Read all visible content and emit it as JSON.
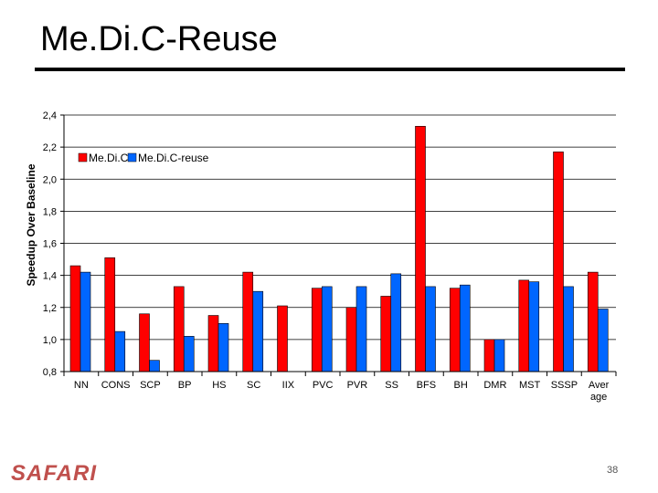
{
  "slide": {
    "title": "Me.Di.C-Reuse",
    "logo_text": "SAFARI",
    "page_number": "38"
  },
  "colors": {
    "series_1": "#ff0000",
    "series_2": "#0066ff",
    "text": "#000000",
    "grid": "#000000",
    "logo": "#c0504d"
  },
  "chart_data": {
    "type": "bar",
    "title": "",
    "xlabel": "",
    "ylabel": "Speedup Over Baseline",
    "ylim": [
      0.8,
      2.4
    ],
    "yticks": [
      "0,8",
      "1,0",
      "1,2",
      "1,4",
      "1,6",
      "1,8",
      "2,0",
      "2,2",
      "2,4"
    ],
    "grid": true,
    "legend_position": "top-left",
    "categories": [
      "NN",
      "CONS",
      "SCP",
      "BP",
      "HS",
      "SC",
      "IIX",
      "PVC",
      "PVR",
      "SS",
      "BFS",
      "BH",
      "DMR",
      "MST",
      "SSSP",
      "Aver age"
    ],
    "series": [
      {
        "name": "Me.Di.C",
        "values": [
          1.46,
          1.51,
          1.16,
          1.33,
          1.15,
          1.42,
          1.21,
          1.32,
          1.2,
          1.27,
          2.33,
          1.32,
          1.0,
          1.37,
          2.17,
          1.42
        ]
      },
      {
        "name": "Me.Di.C-reuse",
        "values": [
          1.42,
          1.05,
          0.87,
          1.02,
          1.1,
          1.3,
          null,
          1.33,
          1.33,
          1.41,
          1.33,
          1.34,
          1.0,
          1.36,
          1.33,
          1.19
        ]
      }
    ]
  }
}
